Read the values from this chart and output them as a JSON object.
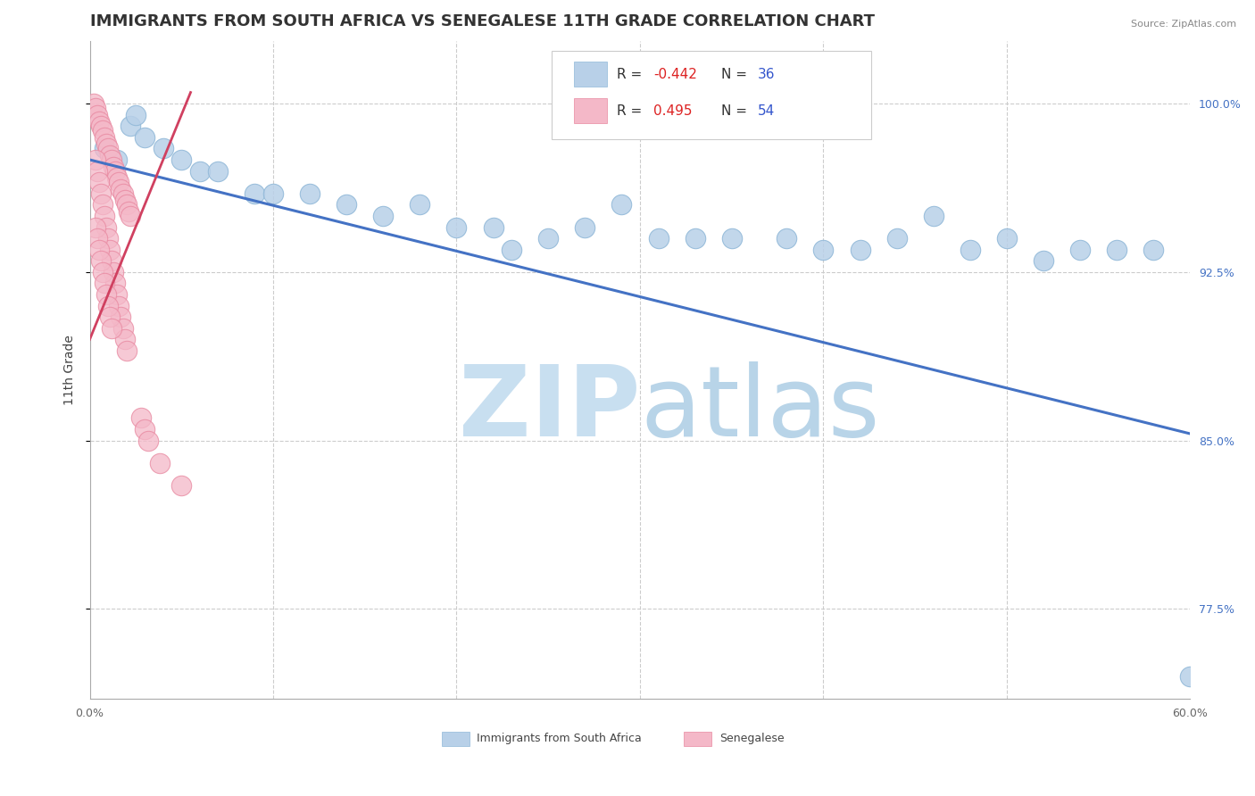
{
  "title": "IMMIGRANTS FROM SOUTH AFRICA VS SENEGALESE 11TH GRADE CORRELATION CHART",
  "source_text": "Source: ZipAtlas.com",
  "ylabel": "11th Grade",
  "xlim": [
    0.0,
    0.6
  ],
  "ylim": [
    0.735,
    1.028
  ],
  "ytick_positions": [
    0.775,
    0.85,
    0.925,
    1.0
  ],
  "ytick_labels": [
    "77.5%",
    "85.0%",
    "92.5%",
    "100.0%"
  ],
  "background_color": "#ffffff",
  "grid_color": "#cccccc",
  "watermark_zip_color": "#c8dff0",
  "watermark_atlas_color": "#b8d4e8",
  "blue_series": {
    "name": "Immigrants from South Africa",
    "R": -0.442,
    "N": 36,
    "color": "#b8d0e8",
    "edge_color": "#90b8d8",
    "x": [
      0.008,
      0.015,
      0.022,
      0.025,
      0.03,
      0.04,
      0.05,
      0.06,
      0.07,
      0.09,
      0.1,
      0.12,
      0.14,
      0.16,
      0.18,
      0.2,
      0.22,
      0.23,
      0.25,
      0.27,
      0.29,
      0.31,
      0.33,
      0.35,
      0.38,
      0.4,
      0.42,
      0.44,
      0.46,
      0.48,
      0.5,
      0.52,
      0.54,
      0.56,
      0.58,
      0.6
    ],
    "y": [
      0.98,
      0.975,
      0.99,
      0.995,
      0.985,
      0.98,
      0.975,
      0.97,
      0.97,
      0.96,
      0.96,
      0.96,
      0.955,
      0.95,
      0.955,
      0.945,
      0.945,
      0.935,
      0.94,
      0.945,
      0.955,
      0.94,
      0.94,
      0.94,
      0.94,
      0.935,
      0.935,
      0.94,
      0.95,
      0.935,
      0.94,
      0.93,
      0.935,
      0.935,
      0.935,
      0.745
    ],
    "trendline": {
      "x0": 0.0,
      "y0": 0.975,
      "x1": 0.6,
      "y1": 0.853,
      "color": "#4472c4",
      "linewidth": 2.2
    }
  },
  "pink_series": {
    "name": "Senegalese",
    "R": 0.495,
    "N": 54,
    "color": "#f4b8c8",
    "edge_color": "#e888a0",
    "x": [
      0.002,
      0.003,
      0.004,
      0.005,
      0.006,
      0.007,
      0.008,
      0.009,
      0.01,
      0.011,
      0.012,
      0.013,
      0.014,
      0.015,
      0.016,
      0.017,
      0.018,
      0.019,
      0.02,
      0.021,
      0.022,
      0.003,
      0.004,
      0.005,
      0.006,
      0.007,
      0.008,
      0.009,
      0.01,
      0.011,
      0.012,
      0.013,
      0.014,
      0.015,
      0.016,
      0.017,
      0.018,
      0.019,
      0.02,
      0.003,
      0.004,
      0.005,
      0.006,
      0.007,
      0.008,
      0.009,
      0.01,
      0.011,
      0.012,
      0.028,
      0.03,
      0.032,
      0.038,
      0.05
    ],
    "y": [
      1.0,
      0.998,
      0.995,
      0.992,
      0.99,
      0.988,
      0.985,
      0.982,
      0.98,
      0.977,
      0.975,
      0.972,
      0.97,
      0.967,
      0.965,
      0.962,
      0.96,
      0.957,
      0.955,
      0.952,
      0.95,
      0.975,
      0.97,
      0.965,
      0.96,
      0.955,
      0.95,
      0.945,
      0.94,
      0.935,
      0.93,
      0.925,
      0.92,
      0.915,
      0.91,
      0.905,
      0.9,
      0.895,
      0.89,
      0.945,
      0.94,
      0.935,
      0.93,
      0.925,
      0.92,
      0.915,
      0.91,
      0.905,
      0.9,
      0.86,
      0.855,
      0.85,
      0.84,
      0.83
    ],
    "trendline": {
      "x0": 0.0,
      "y0": 0.895,
      "x1": 0.055,
      "y1": 1.005,
      "color": "#d04060",
      "linewidth": 2.0
    }
  },
  "legend": {
    "blue_color": "#b8d0e8",
    "pink_color": "#f4b8c8",
    "blue_edge": "#90b8d8",
    "pink_edge": "#e888a0"
  },
  "title_fontsize": 13,
  "tick_fontsize": 9,
  "ylabel_fontsize": 10
}
